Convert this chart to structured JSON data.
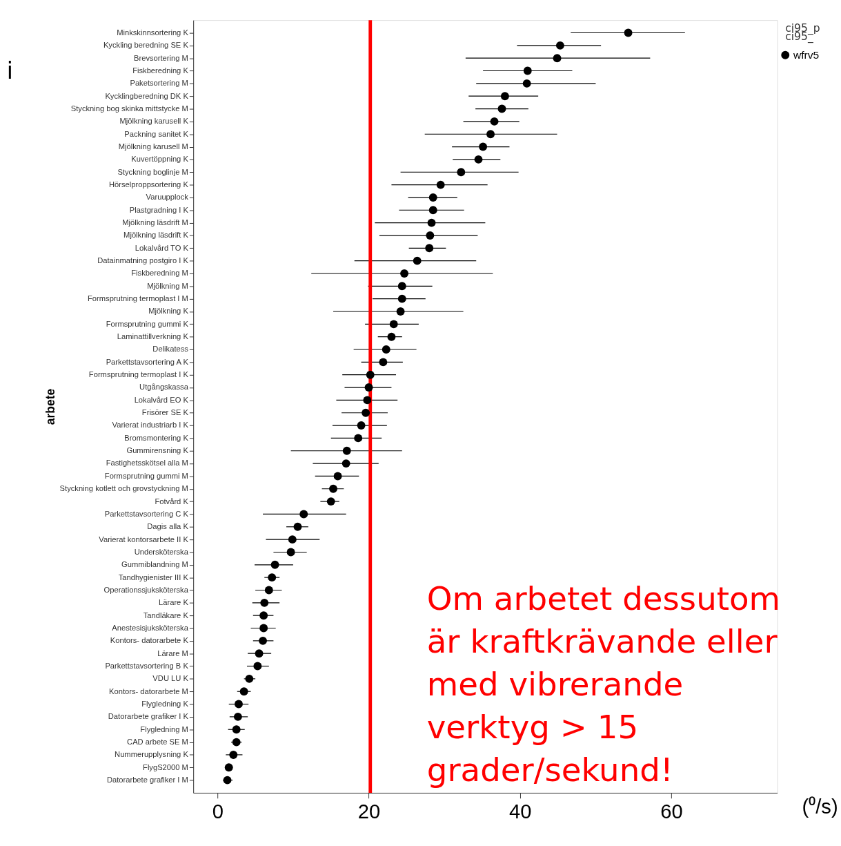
{
  "chart_data": {
    "type": "scatter",
    "orientation": "horizontal",
    "xlabel": "(⁰/s)",
    "ylabel": "arbete",
    "legend": "top right",
    "marker": "circle",
    "grid": false,
    "categories": [
      "Minkskinnsortering K",
      "Kyckling beredning SE K",
      "Brevsortering M",
      "Fiskberedning K",
      "Paketsortering M",
      "Kycklingberedning DK K",
      "Styckning bog skinka mittstycke M",
      "Mjölkning karusell K",
      "Packning sanitet K",
      "Mjölkning karusell M",
      "Kuvertöppning K",
      "Styckning boglinje M",
      "Hörselproppsortering K",
      "Varuupplock",
      "Plastgradning I K",
      "Mjölkning läsdrift M",
      "Mjölkning läsdrift K",
      "Lokalvård TO K",
      "Datainmatning postgiro I K",
      "Fiskberedning M",
      "Mjölkning M",
      "Formsprutning termoplast I M",
      "Mjölkning K",
      "Formsprutning gummi K",
      "Laminattillverkning K",
      "Delikatess",
      "Parkettstavsortering  A K",
      "Formsprutning termoplast I K",
      "Utgångskassa",
      "Lokalvård EO K",
      "Frisörer SE K",
      "Varierat industriarb I K",
      "Bromsmontering K",
      "Gummirensning K",
      "Fastighetsskötsel alla M",
      "Formsprutning gummi M",
      "Styckning kotlett och grovstyckning M",
      "Fotvård K",
      "Parkettstavsortering C K",
      "Dagis alla K",
      "Varierat kontorsarbete II K",
      "Undersköterska",
      "Gummiblandning M",
      "Tandhygienister III K",
      "Operationssjuksköterska",
      "Lärare K",
      "Tandläkare  K",
      "Anestesisjuksköterska",
      "Kontors- datorarbete K",
      "Lärare M",
      "Parkettstavsortering B K",
      "VDU LU K",
      "Kontors- datorarbete M",
      "Flygledning K",
      "Datorarbete grafiker I K",
      "Flygledning M",
      "CAD arbete SE M",
      "Nummerupplysning K",
      "FlygS2000 M",
      "Datorarbete grafiker I M"
    ],
    "series": [
      {
        "name": "wfrv5",
        "color": "#000000",
        "values": [
          54.3,
          45.3,
          44.9,
          41.0,
          40.9,
          38.0,
          37.6,
          36.6,
          36.1,
          35.1,
          34.5,
          32.2,
          29.5,
          28.5,
          28.5,
          28.3,
          28.1,
          28.0,
          26.4,
          24.7,
          24.4,
          24.4,
          24.2,
          23.3,
          23.0,
          22.3,
          21.9,
          20.2,
          20.0,
          19.8,
          19.6,
          19.0,
          18.6,
          17.1,
          17.0,
          15.9,
          15.3,
          15.0,
          11.4,
          10.6,
          9.9,
          9.7,
          7.6,
          7.2,
          6.8,
          6.2,
          6.1,
          6.1,
          6.0,
          5.5,
          5.3,
          4.2,
          3.5,
          2.8,
          2.7,
          2.5,
          2.5,
          2.1,
          1.5,
          1.3
        ],
        "errors": [
          [
            46.7,
            61.8
          ],
          [
            39.6,
            50.7
          ],
          [
            32.8,
            57.2
          ],
          [
            35.1,
            46.9
          ],
          [
            34.2,
            50.0
          ],
          [
            33.2,
            42.4
          ],
          [
            34.1,
            41.1
          ],
          [
            32.5,
            39.9
          ],
          [
            27.4,
            44.9
          ],
          [
            31.0,
            38.6
          ],
          [
            31.1,
            37.4
          ],
          [
            24.2,
            39.8
          ],
          [
            23.0,
            35.7
          ],
          [
            25.2,
            31.7
          ],
          [
            24.0,
            32.6
          ],
          [
            20.8,
            35.4
          ],
          [
            21.4,
            34.4
          ],
          [
            25.3,
            30.2
          ],
          [
            18.1,
            34.2
          ],
          [
            12.4,
            36.4
          ],
          [
            19.9,
            28.4
          ],
          [
            20.5,
            27.5
          ],
          [
            15.3,
            32.5
          ],
          [
            19.5,
            26.6
          ],
          [
            21.2,
            24.4
          ],
          [
            18.0,
            26.3
          ],
          [
            19.0,
            24.5
          ],
          [
            16.5,
            23.6
          ],
          [
            16.8,
            23.0
          ],
          [
            15.7,
            23.8
          ],
          [
            16.4,
            22.5
          ],
          [
            15.2,
            22.4
          ],
          [
            15.0,
            21.7
          ],
          [
            9.7,
            24.4
          ],
          [
            12.6,
            21.3
          ],
          [
            12.9,
            18.7
          ],
          [
            13.8,
            16.7
          ],
          [
            13.6,
            16.1
          ],
          [
            6.0,
            17.0
          ],
          [
            9.1,
            12.0
          ],
          [
            6.4,
            13.5
          ],
          [
            7.4,
            11.8
          ],
          [
            4.9,
            10.0
          ],
          [
            6.2,
            8.2
          ],
          [
            5.0,
            8.5
          ],
          [
            4.6,
            8.2
          ],
          [
            4.7,
            7.4
          ],
          [
            4.4,
            7.7
          ],
          [
            4.7,
            7.4
          ],
          [
            4.0,
            7.1
          ],
          [
            3.9,
            6.8
          ],
          [
            3.5,
            5.0
          ],
          [
            2.6,
            4.4
          ],
          [
            1.5,
            4.1
          ],
          [
            1.6,
            4.0
          ],
          [
            1.4,
            3.6
          ],
          [
            1.8,
            3.2
          ],
          [
            1.1,
            3.3
          ],
          null,
          [
            0.7,
            2.0
          ]
        ]
      }
    ],
    "xlim": [
      -3.2,
      74
    ],
    "xticks": [
      0,
      20,
      40,
      60
    ],
    "ref_lines": [
      {
        "axis": "x",
        "value": 20.2,
        "color": "#ff0000"
      }
    ],
    "annotations": [
      "Om arbetet dessutom\när kraftkrävande eller\nmed vibrerande\nverktyg > 15\ngrader/sekund!",
      "ci95_p\n ci95_",
      "i"
    ]
  }
}
